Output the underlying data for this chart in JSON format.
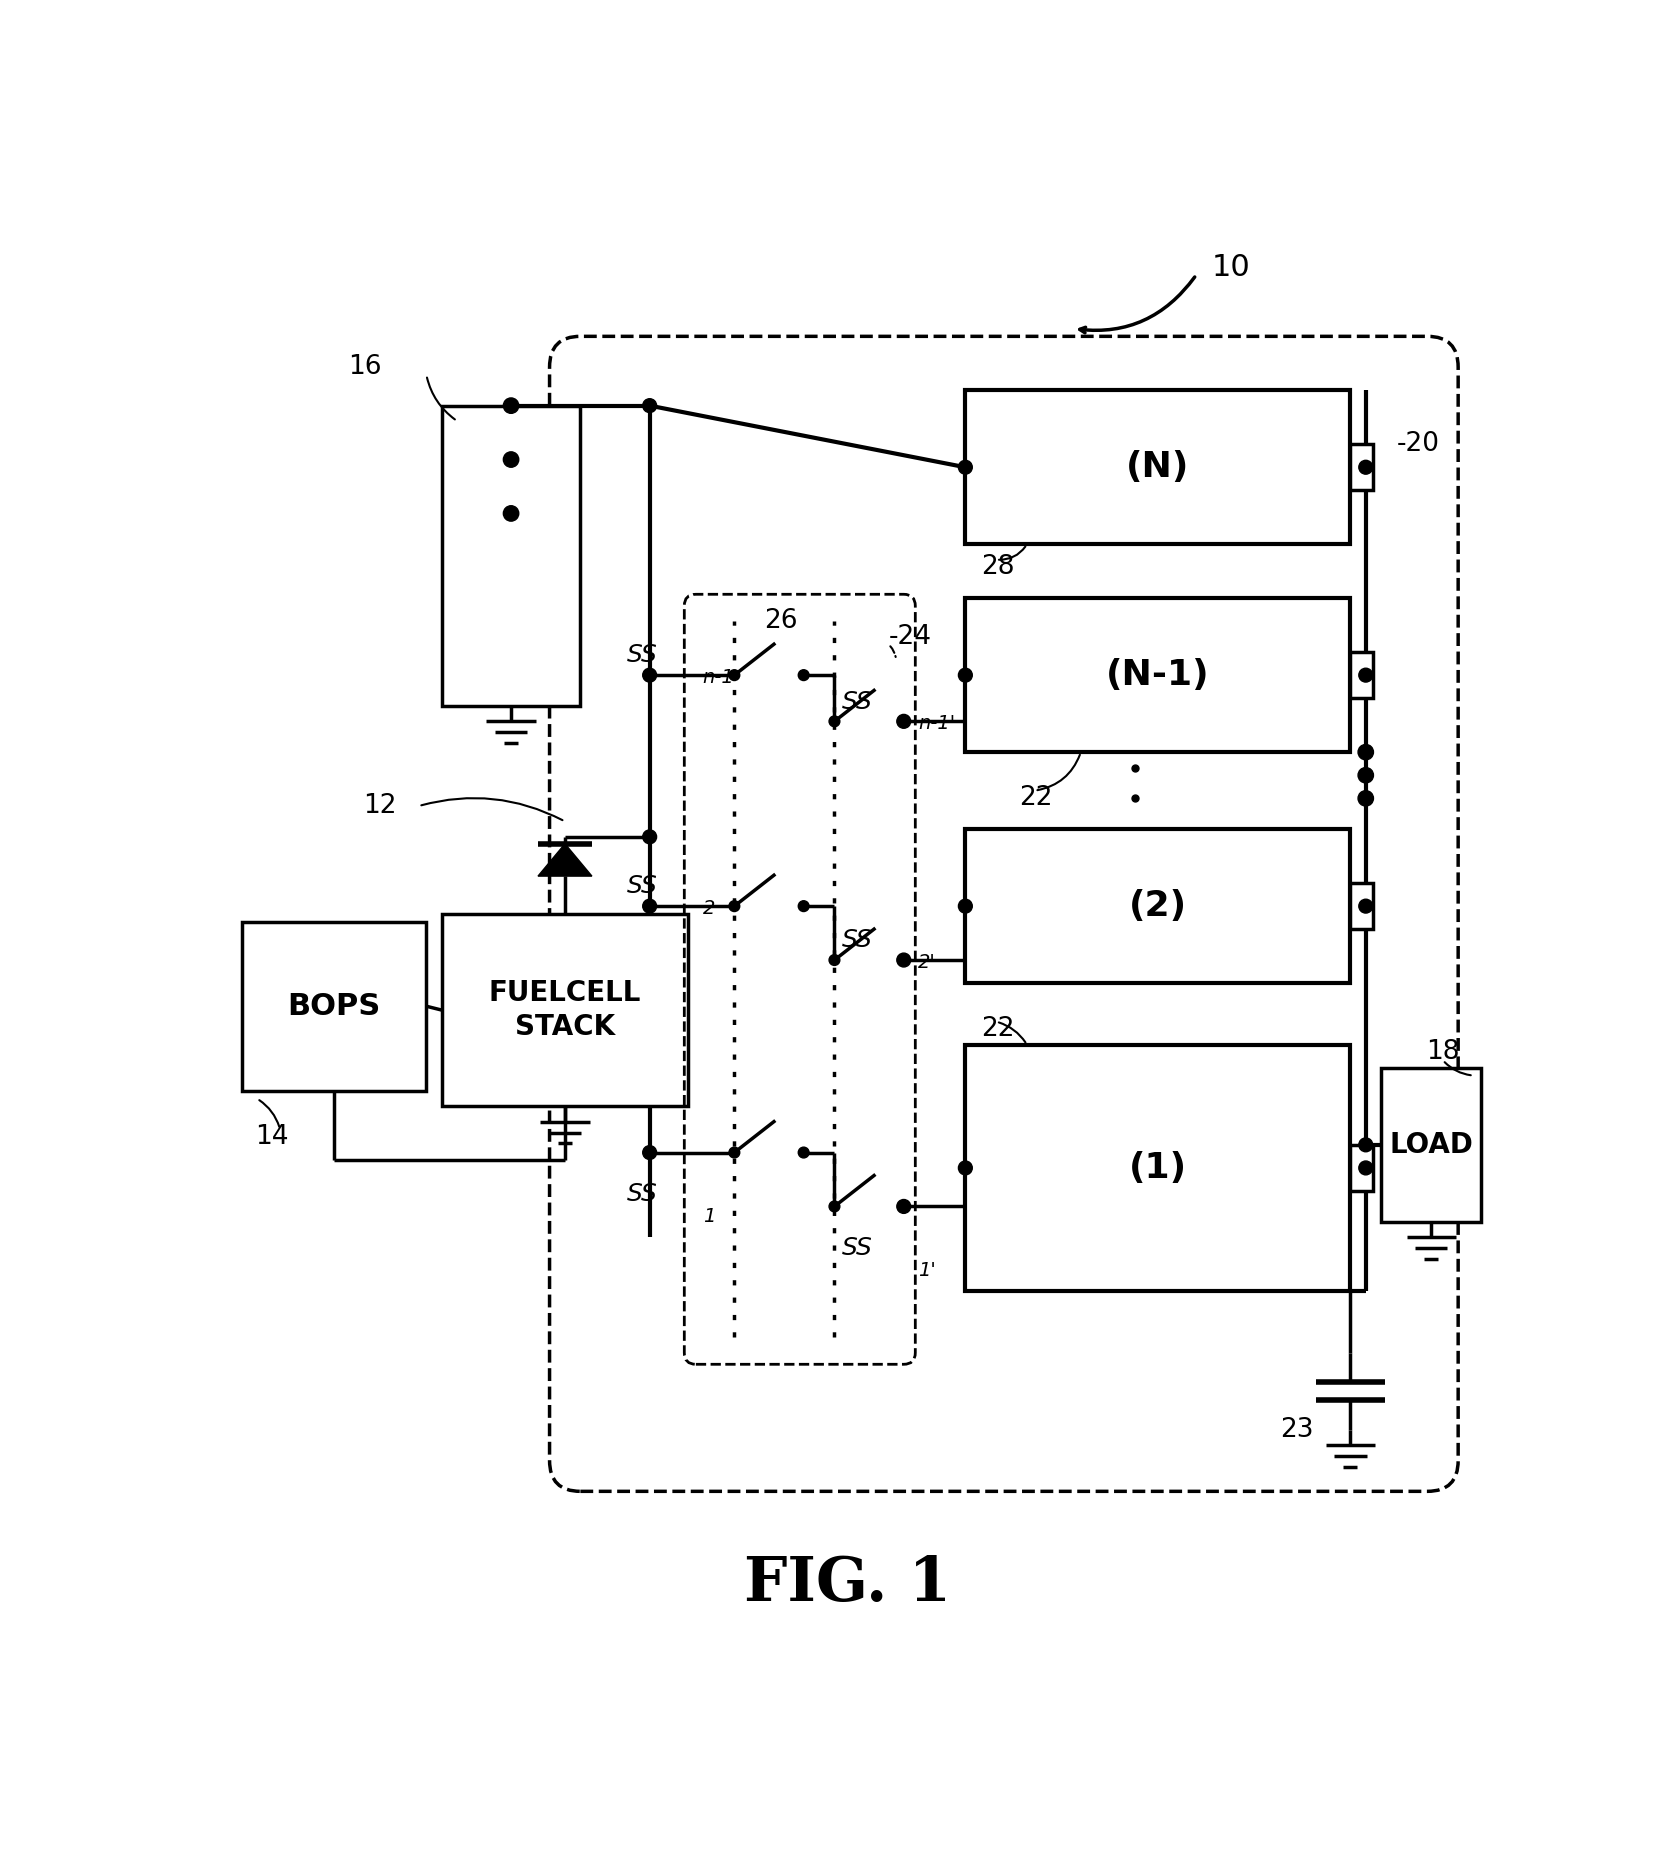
{
  "fig_label": "FIG. 1",
  "bg_color": "#ffffff",
  "box_N": "(N)",
  "box_N1": "(N-1)",
  "box_2": "(2)",
  "box_1": "(1)",
  "bops": "BOPS",
  "fuelcell": "FUELCELL\nSTACK",
  "load": "LOAD",
  "ref_10": "10",
  "ref_12": "12",
  "ref_14": "14",
  "ref_16": "16",
  "ref_18": "18",
  "ref_20": "-20",
  "ref_22a": "22",
  "ref_22b": "22",
  "ref_23": "23",
  "ref_24": "-24",
  "ref_26": "26",
  "ref_28": "28"
}
